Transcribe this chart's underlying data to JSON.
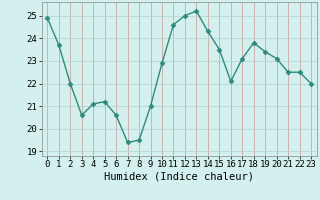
{
  "x": [
    0,
    1,
    2,
    3,
    4,
    5,
    6,
    7,
    8,
    9,
    10,
    11,
    12,
    13,
    14,
    15,
    16,
    17,
    18,
    19,
    20,
    21,
    22,
    23
  ],
  "y": [
    24.9,
    23.7,
    22.0,
    20.6,
    21.1,
    21.2,
    20.6,
    19.4,
    19.5,
    21.0,
    22.9,
    24.6,
    25.0,
    25.2,
    24.3,
    23.5,
    22.1,
    23.1,
    23.8,
    23.4,
    23.1,
    22.5,
    22.5,
    22.0
  ],
  "line_color": "#2e8b7a",
  "marker": "D",
  "marker_size": 2.5,
  "line_width": 1.0,
  "bg_color": "#d4f0ee",
  "grid_color": "#b8d8d4",
  "grid_major_color": "#c8b8b8",
  "xlabel": "Humidex (Indice chaleur)",
  "xlabel_fontsize": 7.5,
  "tick_fontsize": 6.5,
  "ylim": [
    18.8,
    25.6
  ],
  "yticks": [
    19,
    20,
    21,
    22,
    23,
    24,
    25
  ],
  "xlim": [
    -0.5,
    23.5
  ],
  "xticks": [
    0,
    1,
    2,
    3,
    4,
    5,
    6,
    7,
    8,
    9,
    10,
    11,
    12,
    13,
    14,
    15,
    16,
    17,
    18,
    19,
    20,
    21,
    22,
    23
  ]
}
